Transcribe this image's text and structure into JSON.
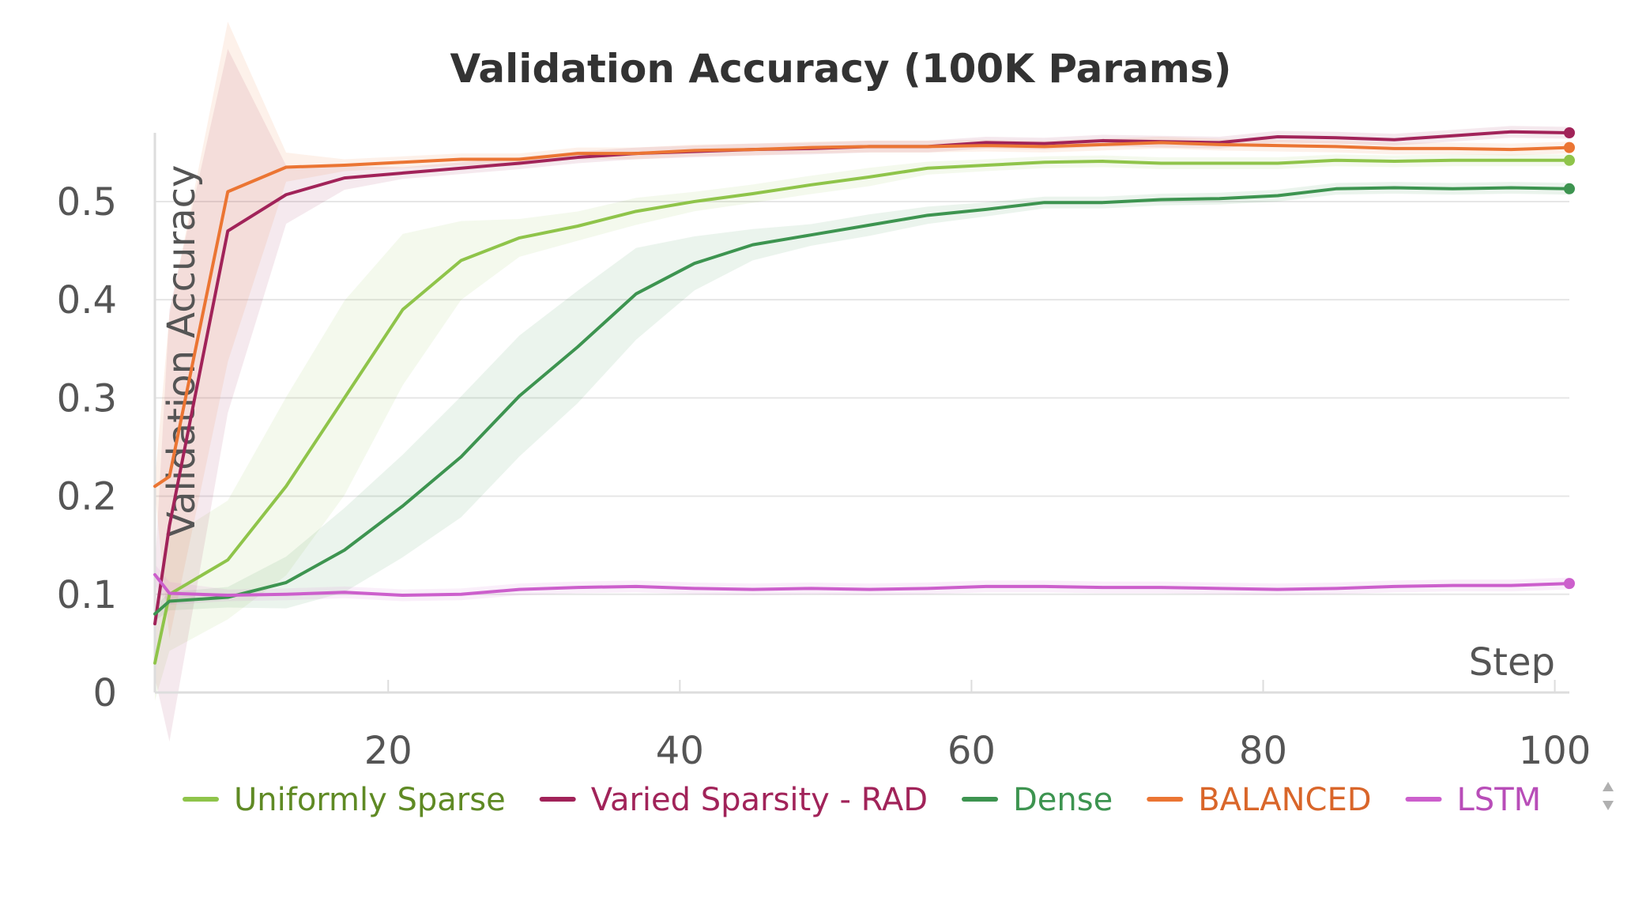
{
  "chart_data": {
    "type": "line",
    "title": "Validation Accuracy (100K Params)",
    "xlabel": "Step",
    "ylabel": "Validation Accuracy",
    "xlim": [
      4,
      101
    ],
    "ylim": [
      0,
      0.57
    ],
    "x_ticks": [
      20,
      40,
      60,
      80,
      100
    ],
    "y_ticks": [
      0,
      0.1,
      0.2,
      0.3,
      0.4,
      0.5
    ],
    "y_tick_labels": [
      "0",
      "0.1",
      "0.2",
      "0.3",
      "0.4",
      "0.5"
    ],
    "grid": true,
    "legend_position": "bottom",
    "series": [
      {
        "name": "Uniformly Sparse",
        "color": "#8fc44a",
        "text_color": "#5f8a24",
        "x": [
          4,
          5,
          9,
          13,
          17,
          21,
          25,
          29,
          33,
          37,
          41,
          45,
          49,
          53,
          57,
          61,
          65,
          69,
          73,
          77,
          81,
          85,
          89,
          93,
          97,
          101
        ],
        "y": [
          0.03,
          0.1,
          0.135,
          0.21,
          0.3,
          0.39,
          0.44,
          0.463,
          0.475,
          0.49,
          0.5,
          0.508,
          0.517,
          0.525,
          0.534,
          0.537,
          0.54,
          0.541,
          0.539,
          0.539,
          0.539,
          0.542,
          0.541,
          0.542,
          0.542,
          0.542
        ]
      },
      {
        "name": "Varied Sparsity - RAD",
        "color": "#a12359",
        "text_color": "#a12359",
        "x": [
          4,
          5,
          9,
          13,
          17,
          21,
          25,
          29,
          33,
          37,
          41,
          45,
          49,
          53,
          57,
          61,
          65,
          69,
          73,
          77,
          81,
          85,
          89,
          93,
          97,
          101
        ],
        "y": [
          0.07,
          0.17,
          0.47,
          0.507,
          0.524,
          0.529,
          0.534,
          0.539,
          0.545,
          0.549,
          0.551,
          0.553,
          0.554,
          0.556,
          0.556,
          0.56,
          0.559,
          0.562,
          0.561,
          0.56,
          0.566,
          0.565,
          0.563,
          0.567,
          0.571,
          0.57
        ]
      },
      {
        "name": "Dense",
        "color": "#3d9450",
        "text_color": "#3d9450",
        "x": [
          4,
          5,
          9,
          13,
          17,
          21,
          25,
          29,
          33,
          37,
          41,
          45,
          49,
          53,
          57,
          61,
          65,
          69,
          73,
          77,
          81,
          85,
          89,
          93,
          97,
          101
        ],
        "y": [
          0.08,
          0.093,
          0.097,
          0.112,
          0.145,
          0.19,
          0.24,
          0.302,
          0.352,
          0.406,
          0.437,
          0.456,
          0.466,
          0.476,
          0.486,
          0.492,
          0.499,
          0.499,
          0.502,
          0.503,
          0.506,
          0.513,
          0.514,
          0.513,
          0.514,
          0.513
        ]
      },
      {
        "name": "BALANCED",
        "color": "#eb7533",
        "text_color": "#d9662a",
        "x": [
          4,
          5,
          9,
          13,
          17,
          21,
          25,
          29,
          33,
          37,
          41,
          45,
          49,
          53,
          57,
          61,
          65,
          69,
          73,
          77,
          81,
          85,
          89,
          93,
          97,
          101
        ],
        "y": [
          0.21,
          0.22,
          0.51,
          0.535,
          0.537,
          0.54,
          0.543,
          0.543,
          0.549,
          0.549,
          0.552,
          0.553,
          0.555,
          0.556,
          0.556,
          0.557,
          0.556,
          0.558,
          0.56,
          0.558,
          0.557,
          0.556,
          0.554,
          0.554,
          0.553,
          0.555
        ]
      },
      {
        "name": "LSTM",
        "color": "#cc5fcc",
        "text_color": "#b84db8",
        "x": [
          4,
          5,
          9,
          13,
          17,
          21,
          25,
          29,
          33,
          37,
          41,
          45,
          49,
          53,
          57,
          61,
          65,
          69,
          73,
          77,
          81,
          85,
          89,
          93,
          97,
          101
        ],
        "y": [
          0.12,
          0.101,
          0.099,
          0.1,
          0.102,
          0.099,
          0.1,
          0.105,
          0.107,
          0.108,
          0.106,
          0.105,
          0.106,
          0.105,
          0.106,
          0.108,
          0.108,
          0.107,
          0.107,
          0.106,
          0.105,
          0.106,
          0.108,
          0.109,
          0.109,
          0.111
        ]
      }
    ]
  }
}
